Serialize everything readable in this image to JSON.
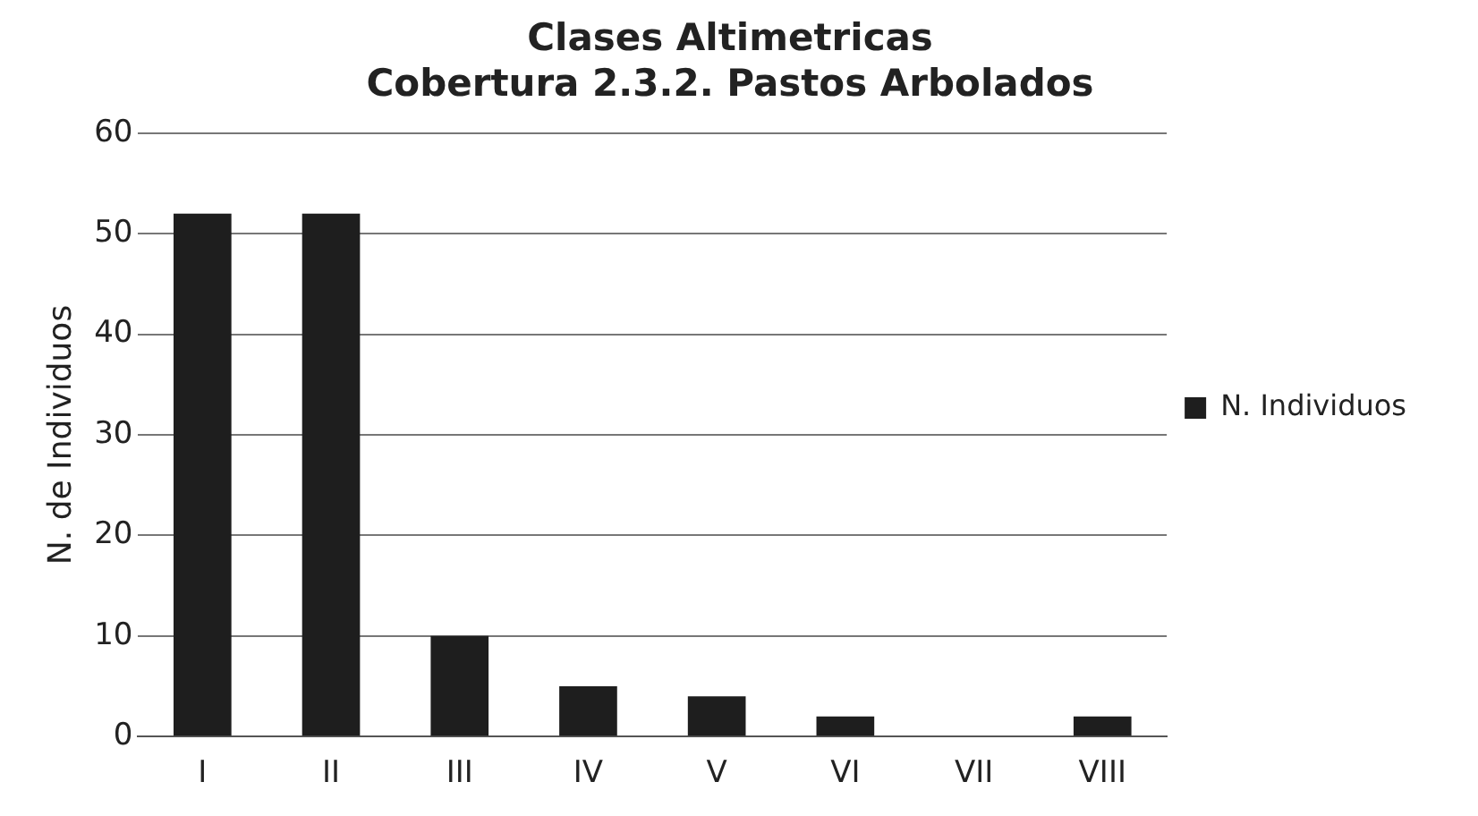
{
  "chart_data": {
    "type": "bar",
    "title": [
      "Clases Altimetricas",
      "Cobertura 2.3.2. Pastos Arbolados"
    ],
    "ylabel": "N. de Individuos",
    "categories": [
      "I",
      "II",
      "III",
      "IV",
      "V",
      "VI",
      "VII",
      "VIII"
    ],
    "series": [
      {
        "name": "N. Individuos",
        "color": "#1e1e1e",
        "values": [
          52,
          52,
          10,
          5,
          4,
          2,
          0,
          2
        ]
      }
    ],
    "ylim": [
      0,
      60
    ],
    "yticks": [
      0,
      10,
      20,
      30,
      40,
      50,
      60
    ],
    "grid": "y",
    "legend": "right"
  }
}
